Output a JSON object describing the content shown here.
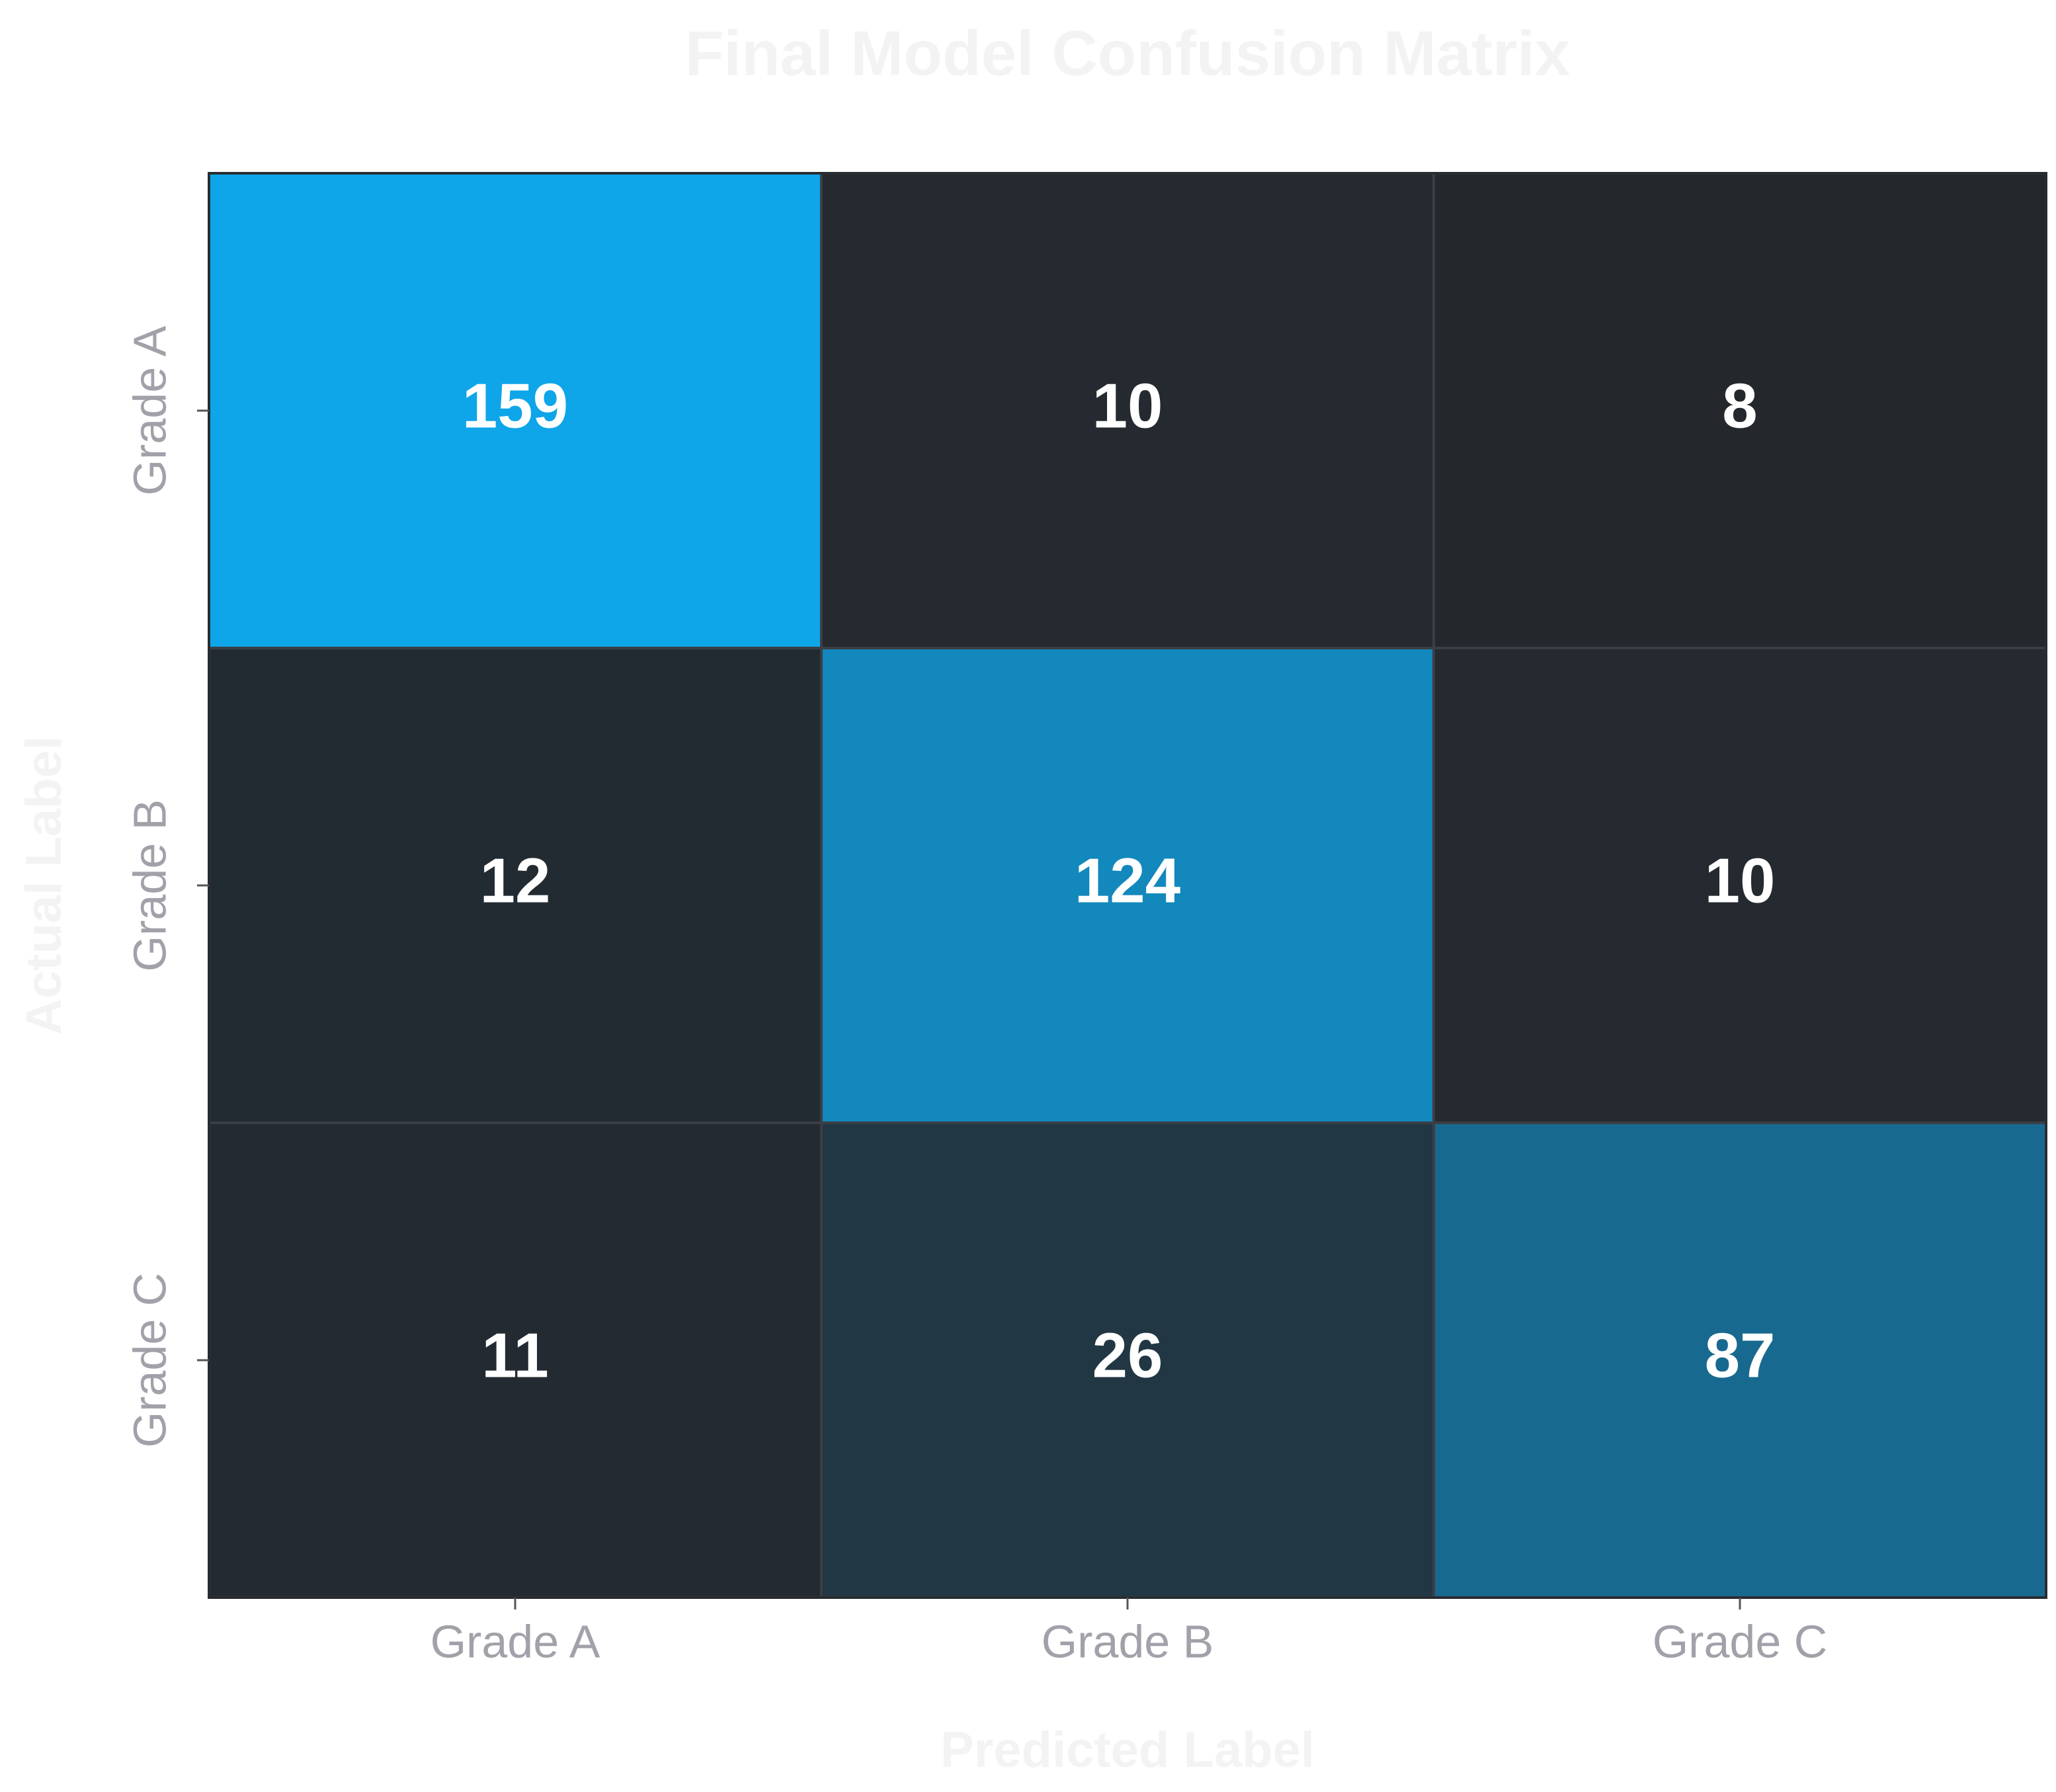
{
  "chart_data": {
    "type": "heatmap",
    "title": "Final Model Confusion Matrix",
    "x_label": "Predicted Label",
    "y_label": "Actual Label",
    "categories": [
      "Grade A",
      "Grade B",
      "Grade C"
    ],
    "y_categories": [
      "Grade A",
      "Grade B",
      "Grade C"
    ],
    "values": [
      [
        159,
        10,
        8
      ],
      [
        12,
        124,
        10
      ],
      [
        11,
        26,
        87
      ]
    ],
    "colors": [
      "#24282d",
      "#0ea5e9"
    ]
  }
}
